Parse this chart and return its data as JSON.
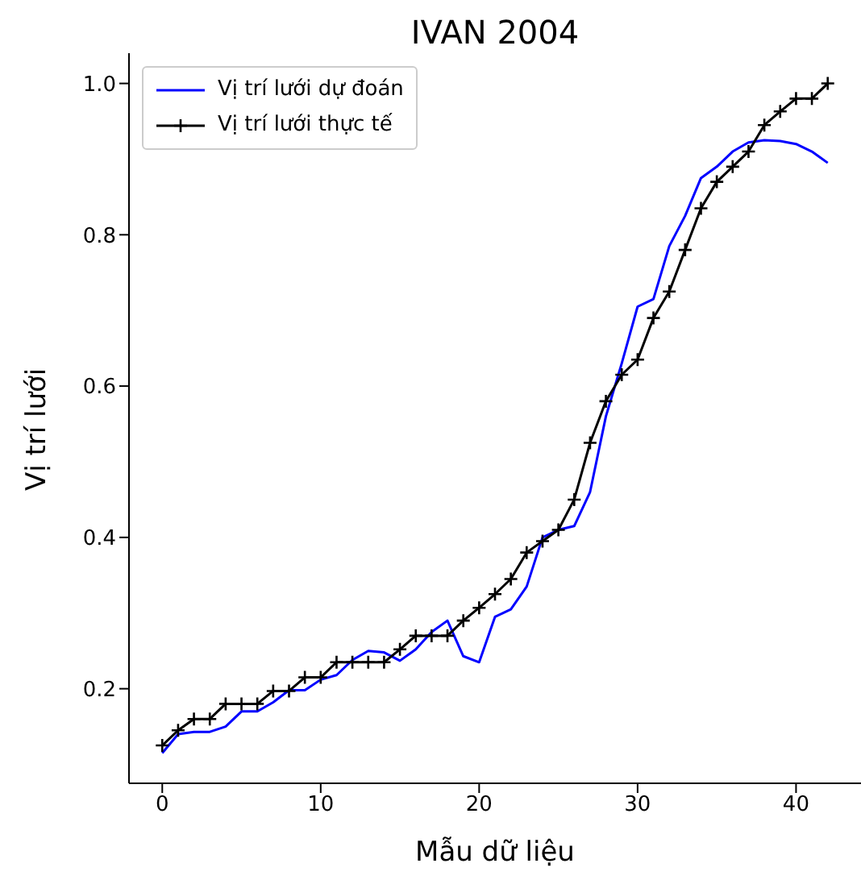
{
  "chart_data": {
    "type": "line",
    "title": "IVAN 2004",
    "xlabel": "Mẫu dữ liệu",
    "ylabel": "Vị trí lưới",
    "x": [
      0,
      1,
      2,
      3,
      4,
      5,
      6,
      7,
      8,
      9,
      10,
      11,
      12,
      13,
      14,
      15,
      16,
      17,
      18,
      19,
      20,
      21,
      22,
      23,
      24,
      25,
      26,
      27,
      28,
      29,
      30,
      31,
      32,
      33,
      34,
      35,
      36,
      37,
      38,
      39,
      40,
      41,
      42
    ],
    "series": [
      {
        "name": "Vị trí lưới dự đoán",
        "color": "#0000ff",
        "marker": "none",
        "values": [
          0.115,
          0.14,
          0.143,
          0.143,
          0.15,
          0.17,
          0.17,
          0.182,
          0.198,
          0.198,
          0.212,
          0.218,
          0.238,
          0.25,
          0.248,
          0.237,
          0.252,
          0.275,
          0.29,
          0.243,
          0.235,
          0.295,
          0.305,
          0.335,
          0.4,
          0.41,
          0.415,
          0.46,
          0.56,
          0.63,
          0.705,
          0.715,
          0.785,
          0.825,
          0.875,
          0.89,
          0.91,
          0.922,
          0.925,
          0.924,
          0.92,
          0.91,
          0.895
        ]
      },
      {
        "name": "Vị trí lưới thực tế",
        "color": "#000000",
        "marker": "cross",
        "values": [
          0.125,
          0.145,
          0.16,
          0.16,
          0.18,
          0.18,
          0.18,
          0.197,
          0.197,
          0.215,
          0.215,
          0.235,
          0.235,
          0.235,
          0.235,
          0.252,
          0.27,
          0.27,
          0.27,
          0.29,
          0.307,
          0.325,
          0.345,
          0.38,
          0.395,
          0.41,
          0.45,
          0.525,
          0.58,
          0.615,
          0.635,
          0.69,
          0.725,
          0.78,
          0.835,
          0.87,
          0.89,
          0.91,
          0.945,
          0.963,
          0.98,
          0.98,
          1.0
        ]
      }
    ],
    "xlim": [
      -2.1,
      44.1
    ],
    "xticks": [
      0,
      10,
      20,
      30,
      40
    ],
    "ylim": [
      0.075,
      1.04
    ],
    "yticks": [
      {
        "value": 0.2,
        "label": "0.2"
      },
      {
        "value": 0.4,
        "label": "0.4"
      },
      {
        "value": 0.6,
        "label": "0.6"
      },
      {
        "value": 0.8,
        "label": "0.8"
      },
      {
        "value": 1.0,
        "label": "1.0"
      }
    ],
    "grid": false,
    "legend": "top left",
    "line_style": "solid"
  }
}
